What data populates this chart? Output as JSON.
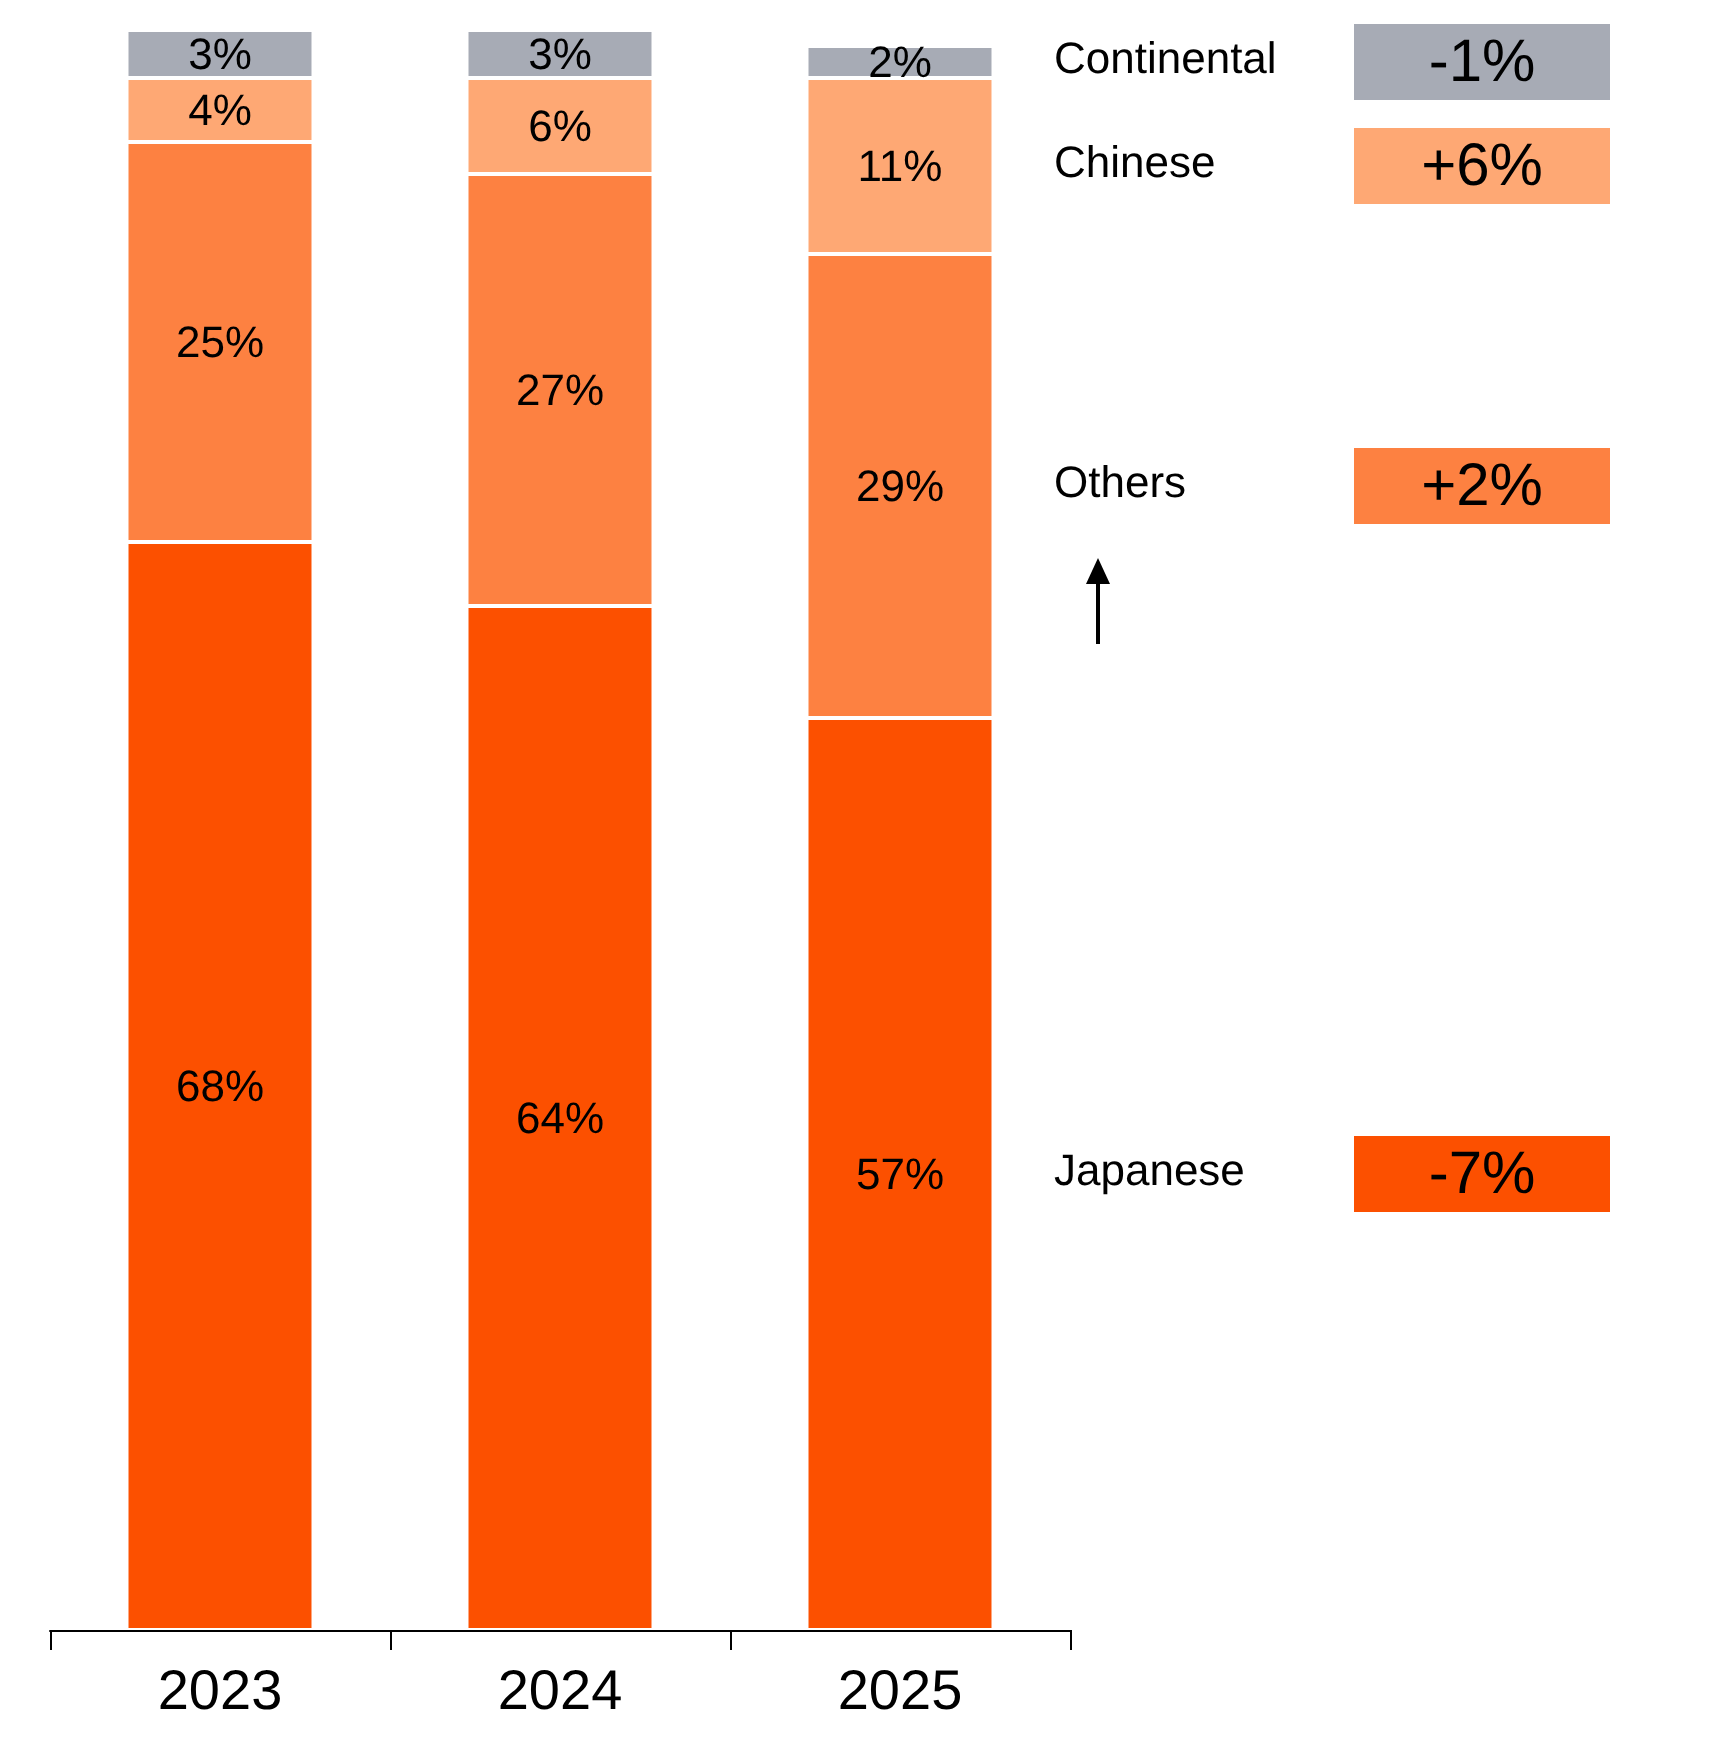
{
  "chart_data": {
    "type": "bar",
    "stacked": true,
    "legend": false,
    "categories": [
      "2023",
      "2024",
      "2025"
    ],
    "series": [
      {
        "name": "Japanese",
        "color": "#fc5000",
        "values": [
          68,
          64,
          57
        ],
        "value_labels": [
          "68%",
          "64%",
          "57%"
        ]
      },
      {
        "name": "Others",
        "color": "#fd8141",
        "values": [
          25,
          27,
          29
        ],
        "value_labels": [
          "25%",
          "27%",
          "29%"
        ]
      },
      {
        "name": "Chinese",
        "color": "#fea874",
        "values": [
          4,
          6,
          11
        ],
        "value_labels": [
          "4%",
          "6%",
          "11%"
        ]
      },
      {
        "name": "Continental",
        "color": "#a7abb5",
        "values": [
          3,
          3,
          2
        ],
        "value_labels": [
          "3%",
          "3%",
          "2%"
        ]
      }
    ],
    "annotations": [
      "-7%",
      "+2%",
      "+6%",
      "-1%"
    ]
  }
}
